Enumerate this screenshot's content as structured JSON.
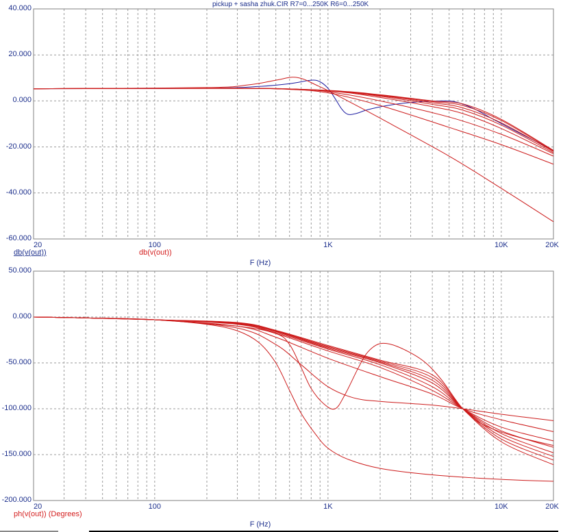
{
  "title": "pickup + sasha zhuk.CIR R7=0...250K R6=0...250K",
  "colors": {
    "axis_text": "#1c2f8c",
    "red": "#cc1a1a",
    "blue": "#1a1aa0",
    "grid": "#9a9a9a"
  },
  "chart_data": [
    {
      "type": "line",
      "title": "pickup + sasha zhuk.CIR R7=0...250K R6=0...250K",
      "xlabel": "F (Hz)",
      "xscale": "log",
      "xlim": [
        20,
        20000
      ],
      "ylim": [
        -60,
        40
      ],
      "grid": true,
      "xticks": [
        {
          "v": 20,
          "label": "20"
        },
        {
          "v": 100,
          "label": "100"
        },
        {
          "v": 1000,
          "label": "1K"
        },
        {
          "v": 10000,
          "label": "10K"
        },
        {
          "v": 20000,
          "label": "20K"
        }
      ],
      "yticks": [
        {
          "v": 40,
          "label": "40.000"
        },
        {
          "v": 20,
          "label": "20.000"
        },
        {
          "v": 0,
          "label": "0.000"
        },
        {
          "v": -20,
          "label": "-20.000"
        },
        {
          "v": -40,
          "label": "-40.000"
        },
        {
          "v": -60,
          "label": "-60.000"
        }
      ],
      "legend": [
        {
          "label": "db(v(out))",
          "color": "blue"
        },
        {
          "label": "db(v(out))",
          "color": "red"
        }
      ],
      "series": [
        {
          "name": "db(v(out)) blue",
          "color": "blue",
          "points": [
            [
              20,
              5.3
            ],
            [
              200,
              5.5
            ],
            [
              400,
              6.3
            ],
            [
              600,
              7.5
            ],
            [
              800,
              9
            ],
            [
              900,
              8.3
            ],
            [
              1000,
              5.5
            ],
            [
              1100,
              1
            ],
            [
              1200,
              -3.5
            ],
            [
              1300,
              -5.8
            ],
            [
              1450,
              -5.5
            ],
            [
              1700,
              -3.8
            ],
            [
              2200,
              -2
            ],
            [
              3000,
              -0.7
            ],
            [
              4500,
              0
            ],
            [
              5500,
              -0.5
            ],
            [
              7000,
              -3.5
            ],
            [
              9000,
              -8
            ],
            [
              12000,
              -13
            ],
            [
              20000,
              -21.5
            ]
          ]
        },
        {
          "name": "db(v(out)) red 1",
          "color": "red",
          "points": [
            [
              20,
              5.3
            ],
            [
              200,
              5.8
            ],
            [
              350,
              7
            ],
            [
              500,
              9
            ],
            [
              620,
              10.3
            ],
            [
              720,
              9.5
            ],
            [
              850,
              7
            ],
            [
              1000,
              4.5
            ],
            [
              1300,
              0
            ],
            [
              2000,
              -7.5
            ],
            [
              5000,
              -24
            ],
            [
              10000,
              -38
            ],
            [
              20000,
              -52.5
            ]
          ]
        },
        {
          "name": "db(v(out)) red 2",
          "color": "red",
          "points": [
            [
              20,
              5.3
            ],
            [
              300,
              5.4
            ],
            [
              600,
              5
            ],
            [
              1000,
              3.5
            ],
            [
              2000,
              -2
            ],
            [
              5000,
              -11.5
            ],
            [
              10000,
              -19
            ],
            [
              20000,
              -27.5
            ]
          ]
        },
        {
          "name": "db(v(out)) red 3",
          "color": "red",
          "points": [
            [
              20,
              5.3
            ],
            [
              300,
              5.5
            ],
            [
              600,
              5.2
            ],
            [
              1000,
              4
            ],
            [
              2000,
              0
            ],
            [
              5000,
              -7
            ],
            [
              10000,
              -14.5
            ],
            [
              20000,
              -24
            ]
          ]
        },
        {
          "name": "db(v(out)) red 4",
          "color": "red",
          "points": [
            [
              20,
              5.3
            ],
            [
              300,
              5.5
            ],
            [
              1000,
              4.3
            ],
            [
              2000,
              1.5
            ],
            [
              4000,
              -2.5
            ],
            [
              6000,
              -5.5
            ],
            [
              10000,
              -12
            ],
            [
              20000,
              -23
            ]
          ]
        },
        {
          "name": "db(v(out)) red 5",
          "color": "red",
          "points": [
            [
              20,
              5.3
            ],
            [
              300,
              5.5
            ],
            [
              1000,
              4.4
            ],
            [
              2000,
              2
            ],
            [
              4000,
              -1.5
            ],
            [
              6000,
              -4
            ],
            [
              10000,
              -10.5
            ],
            [
              20000,
              -22.5
            ]
          ]
        },
        {
          "name": "db(v(out)) red 6",
          "color": "red",
          "points": [
            [
              20,
              5.3
            ],
            [
              300,
              5.5
            ],
            [
              1000,
              4.5
            ],
            [
              2000,
              2.3
            ],
            [
              4000,
              -0.8
            ],
            [
              6000,
              -3
            ],
            [
              10000,
              -9.5
            ],
            [
              20000,
              -22
            ]
          ]
        },
        {
          "name": "db(v(out)) red 7",
          "color": "red",
          "points": [
            [
              20,
              5.3
            ],
            [
              300,
              5.5
            ],
            [
              1000,
              4.5
            ],
            [
              2000,
              2.5
            ],
            [
              4000,
              -0.3
            ],
            [
              6000,
              -2
            ],
            [
              10000,
              -8.5
            ],
            [
              20000,
              -21.8
            ]
          ]
        },
        {
          "name": "db(v(out)) red 8",
          "color": "red",
          "points": [
            [
              20,
              5.3
            ],
            [
              300,
              5.5
            ],
            [
              1000,
              4.6
            ],
            [
              2000,
              2.7
            ],
            [
              4000,
              0
            ],
            [
              6000,
              -1.3
            ],
            [
              10000,
              -8
            ],
            [
              20000,
              -21.5
            ]
          ]
        }
      ]
    },
    {
      "type": "line",
      "xlabel": "F (Hz)",
      "xscale": "log",
      "xlim": [
        20,
        20000
      ],
      "ylim": [
        -200,
        50
      ],
      "grid": true,
      "xticks": [
        {
          "v": 20,
          "label": "20"
        },
        {
          "v": 100,
          "label": "100"
        },
        {
          "v": 1000,
          "label": "1K"
        },
        {
          "v": 10000,
          "label": "10K"
        },
        {
          "v": 20000,
          "label": "20K"
        }
      ],
      "yticks": [
        {
          "v": 50,
          "label": "50.000"
        },
        {
          "v": 0,
          "label": "0.000"
        },
        {
          "v": -50,
          "label": "-50.000"
        },
        {
          "v": -100,
          "label": "-100.000"
        },
        {
          "v": -150,
          "label": "-150.000"
        },
        {
          "v": -200,
          "label": "-200.000"
        }
      ],
      "legend": [
        {
          "label": "ph(v(out)) (Degrees)",
          "color": "red"
        }
      ],
      "series": [
        {
          "name": "ph 1",
          "color": "red",
          "points": [
            [
              20,
              0
            ],
            [
              40,
              -1
            ],
            [
              100,
              -3
            ],
            [
              200,
              -8
            ],
            [
              300,
              -15
            ],
            [
              400,
              -28
            ],
            [
              500,
              -50
            ],
            [
              600,
              -80
            ],
            [
              700,
              -105
            ],
            [
              850,
              -128
            ],
            [
              1000,
              -143
            ],
            [
              1300,
              -155
            ],
            [
              2000,
              -165
            ],
            [
              4000,
              -172
            ],
            [
              10000,
              -177
            ],
            [
              20000,
              -179
            ]
          ]
        },
        {
          "name": "ph 2",
          "color": "red",
          "points": [
            [
              20,
              0
            ],
            [
              40,
              -1
            ],
            [
              100,
              -3
            ],
            [
              300,
              -10
            ],
            [
              500,
              -18
            ],
            [
              600,
              -30
            ],
            [
              700,
              -55
            ],
            [
              800,
              -78
            ],
            [
              950,
              -95
            ],
            [
              1100,
              -100
            ],
            [
              1250,
              -85
            ],
            [
              1500,
              -55
            ],
            [
              1700,
              -38
            ],
            [
              2000,
              -29
            ],
            [
              2500,
              -32
            ],
            [
              3500,
              -47
            ],
            [
              4500,
              -68
            ],
            [
              6000,
              -100
            ],
            [
              8000,
              -118
            ],
            [
              12000,
              -130
            ],
            [
              20000,
              -140
            ]
          ]
        },
        {
          "name": "ph 3",
          "color": "red",
          "points": [
            [
              20,
              0
            ],
            [
              40,
              -1
            ],
            [
              100,
              -3
            ],
            [
              300,
              -12
            ],
            [
              500,
              -30
            ],
            [
              700,
              -52
            ],
            [
              1000,
              -76
            ],
            [
              1400,
              -88
            ],
            [
              2000,
              -92
            ],
            [
              4000,
              -96
            ],
            [
              6000,
              -100
            ],
            [
              10000,
              -106
            ],
            [
              20000,
              -113
            ]
          ]
        },
        {
          "name": "ph 4",
          "color": "red",
          "points": [
            [
              20,
              0
            ],
            [
              40,
              -1
            ],
            [
              100,
              -3
            ],
            [
              300,
              -10
            ],
            [
              500,
              -22
            ],
            [
              1000,
              -45
            ],
            [
              2000,
              -65
            ],
            [
              4000,
              -84
            ],
            [
              6000,
              -100
            ],
            [
              10000,
              -112
            ],
            [
              20000,
              -125
            ]
          ]
        },
        {
          "name": "ph 5",
          "color": "red",
          "points": [
            [
              20,
              0
            ],
            [
              40,
              -1
            ],
            [
              100,
              -3
            ],
            [
              300,
              -8
            ],
            [
              500,
              -18
            ],
            [
              1000,
              -37
            ],
            [
              2000,
              -55
            ],
            [
              4000,
              -80
            ],
            [
              6000,
              -100
            ],
            [
              10000,
              -120
            ],
            [
              20000,
              -135
            ]
          ]
        },
        {
          "name": "ph 6",
          "color": "red",
          "points": [
            [
              20,
              0
            ],
            [
              40,
              -1
            ],
            [
              100,
              -3
            ],
            [
              300,
              -7.5
            ],
            [
              500,
              -17
            ],
            [
              1000,
              -35
            ],
            [
              2000,
              -52
            ],
            [
              4000,
              -76
            ],
            [
              6000,
              -100
            ],
            [
              10000,
              -124
            ],
            [
              20000,
              -142
            ]
          ]
        },
        {
          "name": "ph 7",
          "color": "red",
          "points": [
            [
              20,
              0
            ],
            [
              40,
              -1
            ],
            [
              100,
              -3
            ],
            [
              300,
              -7
            ],
            [
              500,
              -16
            ],
            [
              1000,
              -34
            ],
            [
              2000,
              -50
            ],
            [
              4000,
              -72
            ],
            [
              6000,
              -100
            ],
            [
              10000,
              -127
            ],
            [
              20000,
              -148
            ]
          ]
        },
        {
          "name": "ph 8",
          "color": "red",
          "points": [
            [
              20,
              0
            ],
            [
              40,
              -1
            ],
            [
              100,
              -3
            ],
            [
              300,
              -7
            ],
            [
              500,
              -15.5
            ],
            [
              1000,
              -33
            ],
            [
              2000,
              -49
            ],
            [
              4000,
              -69
            ],
            [
              6000,
              -100
            ],
            [
              10000,
              -130
            ],
            [
              20000,
              -152
            ]
          ]
        },
        {
          "name": "ph 9",
          "color": "red",
          "points": [
            [
              20,
              0
            ],
            [
              40,
              -1
            ],
            [
              100,
              -3
            ],
            [
              300,
              -6.5
            ],
            [
              500,
              -15
            ],
            [
              1000,
              -32
            ],
            [
              2000,
              -48
            ],
            [
              4000,
              -66
            ],
            [
              6000,
              -100
            ],
            [
              10000,
              -133
            ],
            [
              20000,
              -156
            ]
          ]
        },
        {
          "name": "ph 10",
          "color": "red",
          "points": [
            [
              20,
              0
            ],
            [
              40,
              -1
            ],
            [
              100,
              -3
            ],
            [
              300,
              -6
            ],
            [
              500,
              -14.5
            ],
            [
              1000,
              -31
            ],
            [
              2000,
              -47
            ],
            [
              4000,
              -63
            ],
            [
              6000,
              -100
            ],
            [
              10000,
              -136
            ],
            [
              20000,
              -161
            ]
          ]
        }
      ]
    }
  ]
}
